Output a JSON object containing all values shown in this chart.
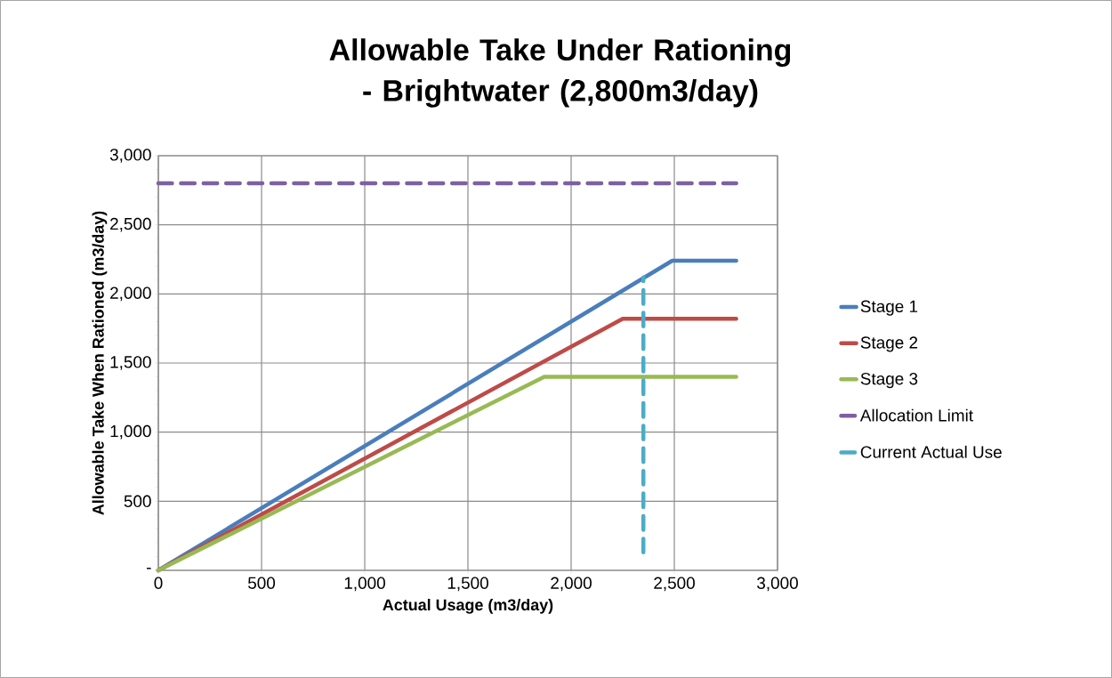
{
  "chart_data": {
    "type": "line",
    "title": "Allowable Take Under Rationing - Brightwater (2,800m3/day)",
    "xlabel": "Actual Usage (m3/day)",
    "ylabel": "Allowable Take When Rationed (m3/day)",
    "xlim": [
      0,
      3000
    ],
    "xticks": [
      0,
      500,
      {
        "value": 1000,
        "label": "1,000"
      },
      {
        "value": 1500,
        "label": "1,500"
      },
      {
        "value": 2000,
        "label": "2,000"
      },
      {
        "value": 2500,
        "label": "2,500"
      },
      {
        "value": 3000,
        "label": "3,000"
      }
    ],
    "ylim": [
      0,
      3000
    ],
    "yticks": [
      {
        "value": 0,
        "label": "-"
      },
      500,
      {
        "value": 1000,
        "label": "1,000"
      },
      {
        "value": 1500,
        "label": "1,500"
      },
      {
        "value": 2000,
        "label": "2,000"
      },
      {
        "value": 2500,
        "label": "2,500"
      },
      {
        "value": 3000,
        "label": "3,000"
      }
    ],
    "grid": true,
    "legend": "right",
    "marker": "none",
    "series": [
      {
        "name": "Stage 1",
        "color": "#4a7ebb",
        "x": [
          0,
          2490,
          2800
        ],
        "values": [
          0,
          2240,
          2240
        ]
      },
      {
        "name": "Stage 2",
        "color": "#be4b48",
        "x": [
          0,
          2250,
          2800
        ],
        "values": [
          0,
          1820,
          1820
        ]
      },
      {
        "name": "Stage 3",
        "color": "#98b954",
        "x": [
          0,
          1870,
          2800
        ],
        "values": [
          0,
          1400,
          1400
        ]
      },
      {
        "name": "Allocation Limit",
        "color": "#7d60a0",
        "line_style": "dashed",
        "x": [
          0,
          2800
        ],
        "values": [
          2800,
          2800
        ]
      },
      {
        "name": "Current Actual Use",
        "color": "#4bacc6",
        "line_style": "dashed",
        "x": [
          2350,
          2350
        ],
        "values": [
          130,
          2120
        ]
      }
    ]
  }
}
